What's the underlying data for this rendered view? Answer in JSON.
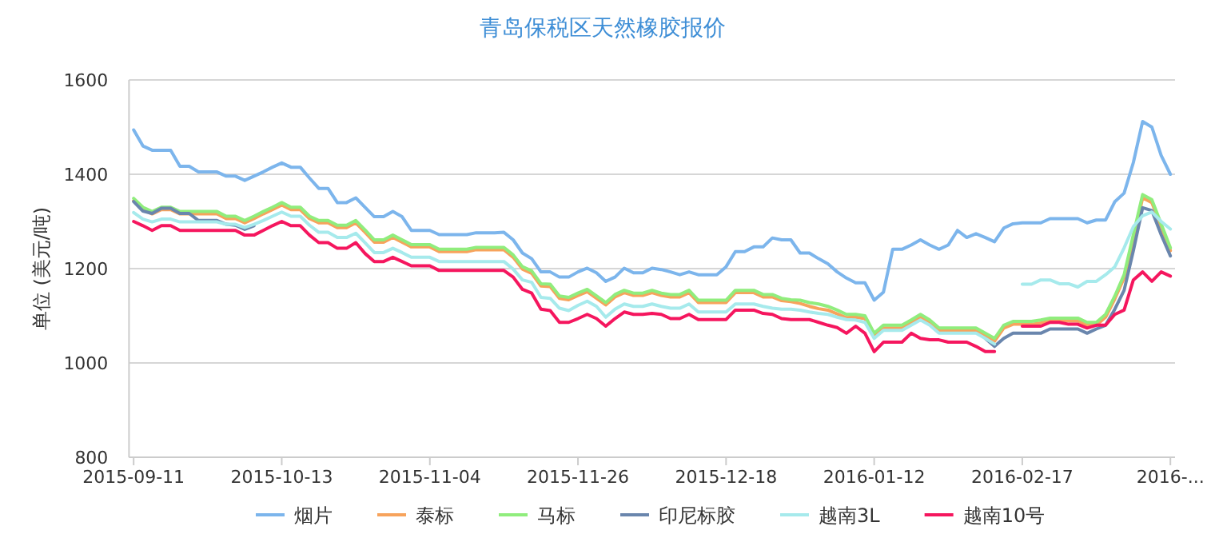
{
  "chart_data": {
    "type": "line",
    "title": "青岛保税区天然橡胶报价",
    "ylabel": "单位 (美元/吨)",
    "categories": [
      "2015-09-11",
      null,
      null,
      null,
      null,
      null,
      null,
      null,
      null,
      null,
      null,
      null,
      null,
      null,
      null,
      null,
      "2015-10-13",
      null,
      null,
      null,
      null,
      null,
      null,
      null,
      null,
      null,
      null,
      null,
      null,
      null,
      null,
      null,
      "2015-11-04",
      null,
      null,
      null,
      null,
      null,
      null,
      null,
      null,
      null,
      null,
      null,
      null,
      null,
      null,
      null,
      "2015-11-26",
      null,
      null,
      null,
      null,
      null,
      null,
      null,
      null,
      null,
      null,
      null,
      null,
      null,
      null,
      null,
      "2015-12-18",
      null,
      null,
      null,
      null,
      null,
      null,
      null,
      null,
      null,
      null,
      null,
      null,
      null,
      null,
      null,
      "2016-01-12",
      null,
      null,
      null,
      null,
      null,
      null,
      null,
      null,
      null,
      null,
      null,
      null,
      null,
      null,
      null,
      "2016-02-17",
      null,
      null,
      null,
      null,
      null,
      null,
      null,
      null,
      null,
      null,
      null,
      null,
      null,
      null,
      null,
      "2016-..."
    ],
    "series": [
      {
        "name": "烟片",
        "color": "#7cb5ec",
        "values": [
          1494,
          1460,
          1451,
          1451,
          1451,
          1417,
          1417,
          1405,
          1405,
          1405,
          1396,
          1396,
          1387,
          1396,
          1405,
          1415,
          1424,
          1415,
          1415,
          1392,
          1370,
          1370,
          1340,
          1340,
          1350,
          1330,
          1310,
          1310,
          1321,
          1310,
          1281,
          1281,
          1281,
          1272,
          1272,
          1272,
          1272,
          1276,
          1276,
          1276,
          1277,
          1261,
          1233,
          1221,
          1193,
          1193,
          1182,
          1182,
          1193,
          1201,
          1191,
          1173,
          1182,
          1201,
          1191,
          1191,
          1201,
          1198,
          1193,
          1187,
          1193,
          1187,
          1187,
          1187,
          1204,
          1236,
          1236,
          1246,
          1246,
          1265,
          1261,
          1261,
          1233,
          1233,
          1221,
          1210,
          1193,
          1180,
          1170,
          1170,
          1133,
          1150,
          1241,
          1241,
          1250,
          1261,
          1250,
          1241,
          1250,
          1281,
          1266,
          1274,
          1266,
          1257,
          1286,
          1295,
          1297,
          1297,
          1297,
          1306,
          1306,
          1306,
          1306,
          1297,
          1303,
          1303,
          1342,
          1360,
          1425,
          1512,
          1500,
          1440,
          1400
        ]
      },
      {
        "name": "泰标",
        "color": "#f7a35c",
        "values": [
          1344,
          1325,
          1316,
          1325,
          1325,
          1316,
          1316,
          1316,
          1316,
          1316,
          1306,
          1306,
          1297,
          1306,
          1316,
          1325,
          1335,
          1325,
          1325,
          1306,
          1297,
          1297,
          1287,
          1287,
          1297,
          1277,
          1256,
          1256,
          1266,
          1256,
          1246,
          1246,
          1246,
          1236,
          1236,
          1236,
          1236,
          1240,
          1240,
          1240,
          1240,
          1224,
          1199,
          1190,
          1163,
          1162,
          1137,
          1134,
          1143,
          1151,
          1137,
          1123,
          1140,
          1149,
          1143,
          1143,
          1149,
          1143,
          1140,
          1140,
          1149,
          1128,
          1128,
          1128,
          1128,
          1149,
          1149,
          1149,
          1140,
          1140,
          1132,
          1130,
          1126,
          1120,
          1115,
          1112,
          1104,
          1096,
          1097,
          1094,
          1057,
          1074,
          1074,
          1074,
          1085,
          1097,
          1085,
          1068,
          1068,
          1068,
          1068,
          1068,
          1057,
          1046,
          1074,
          1082,
          1082,
          1082,
          1085,
          1089,
          1089,
          1089,
          1089,
          1080,
          1080,
          1097,
          1136,
          1180,
          1262,
          1350,
          1340,
          1290,
          1238
        ]
      },
      {
        "name": "马标",
        "color": "#90ed7d",
        "values": [
          1349,
          1330,
          1321,
          1330,
          1330,
          1321,
          1321,
          1321,
          1321,
          1321,
          1311,
          1311,
          1302,
          1311,
          1321,
          1330,
          1340,
          1330,
          1330,
          1311,
          1302,
          1302,
          1292,
          1292,
          1302,
          1282,
          1261,
          1261,
          1271,
          1261,
          1251,
          1251,
          1251,
          1241,
          1241,
          1241,
          1241,
          1245,
          1245,
          1245,
          1245,
          1229,
          1204,
          1195,
          1168,
          1167,
          1142,
          1139,
          1148,
          1156,
          1142,
          1128,
          1145,
          1154,
          1148,
          1148,
          1154,
          1148,
          1145,
          1145,
          1154,
          1133,
          1133,
          1133,
          1133,
          1154,
          1154,
          1154,
          1145,
          1145,
          1137,
          1134,
          1133,
          1128,
          1125,
          1120,
          1112,
          1103,
          1103,
          1100,
          1063,
          1080,
          1080,
          1080,
          1091,
          1103,
          1091,
          1074,
          1074,
          1074,
          1074,
          1074,
          1063,
          1052,
          1080,
          1088,
          1088,
          1088,
          1091,
          1095,
          1095,
          1095,
          1095,
          1086,
          1086,
          1103,
          1142,
          1187,
          1272,
          1357,
          1346,
          1295,
          1244
        ]
      },
      {
        "name": "印尼标胶",
        "color": "#6a86ad",
        "values": [
          1342,
          1322,
          1317,
          1328,
          1328,
          1317,
          1317,
          1302,
          1302,
          1302,
          1294,
          1292,
          1283,
          1291,
          null,
          null,
          null,
          null,
          null,
          null,
          null,
          null,
          null,
          null,
          null,
          null,
          null,
          null,
          null,
          null,
          null,
          null,
          null,
          null,
          null,
          null,
          null,
          null,
          null,
          null,
          null,
          null,
          null,
          null,
          null,
          null,
          null,
          null,
          null,
          null,
          null,
          null,
          null,
          null,
          null,
          null,
          null,
          null,
          null,
          null,
          null,
          null,
          null,
          null,
          null,
          null,
          null,
          null,
          null,
          null,
          null,
          null,
          null,
          null,
          null,
          null,
          null,
          null,
          null,
          null,
          null,
          null,
          null,
          null,
          null,
          null,
          null,
          null,
          null,
          null,
          null,
          null,
          1052,
          1035,
          1052,
          1063,
          1063,
          1063,
          1063,
          1072,
          1072,
          1072,
          1072,
          1063,
          1072,
          1080,
          1114,
          1154,
          1238,
          1329,
          1323,
          1272,
          1227
        ]
      },
      {
        "name": "越南3L",
        "color": "#a6eaec",
        "values": [
          1319,
          1305,
          1299,
          1305,
          1305,
          1299,
          1299,
          1299,
          1299,
          1299,
          1294,
          1294,
          1287,
          1294,
          1302,
          1311,
          1320,
          1311,
          1311,
          1292,
          1277,
          1277,
          1266,
          1266,
          1275,
          1255,
          1234,
          1234,
          1243,
          1234,
          1224,
          1224,
          1224,
          1215,
          1215,
          1215,
          1215,
          1215,
          1215,
          1215,
          1215,
          1199,
          1176,
          1171,
          1139,
          1137,
          1116,
          1111,
          1122,
          1131,
          1120,
          1097,
          1114,
          1125,
          1120,
          1120,
          1125,
          1120,
          1116,
          1116,
          1125,
          1108,
          1108,
          1108,
          1108,
          1125,
          1125,
          1125,
          1120,
          1116,
          1114,
          1114,
          1112,
          1108,
          1105,
          1103,
          1097,
          1092,
          1091,
          1086,
          1052,
          1069,
          1069,
          1069,
          1080,
          1091,
          1080,
          1063,
          1063,
          1063,
          1063,
          1063,
          1052,
          1040,
          null,
          null,
          1167,
          1167,
          1176,
          1176,
          1168,
          1168,
          1161,
          1173,
          1173,
          1187,
          1204,
          1244,
          1289,
          1312,
          1320,
          1300,
          1284
        ]
      },
      {
        "name": "越南10号",
        "color": "#f5165e",
        "values": [
          1300,
          1291,
          1281,
          1291,
          1291,
          1281,
          1281,
          1281,
          1281,
          1281,
          1281,
          1281,
          1271,
          1271,
          1281,
          1291,
          1300,
          1291,
          1291,
          1271,
          1255,
          1255,
          1243,
          1243,
          1255,
          1232,
          1215,
          1215,
          1224,
          1215,
          1206,
          1206,
          1206,
          1196,
          1196,
          1196,
          1196,
          1196,
          1196,
          1196,
          1196,
          1182,
          1156,
          1148,
          1114,
          1111,
          1086,
          1086,
          1094,
          1103,
          1094,
          1078,
          1094,
          1108,
          1103,
          1103,
          1105,
          1103,
          1094,
          1094,
          1103,
          1092,
          1092,
          1092,
          1092,
          1112,
          1112,
          1112,
          1105,
          1103,
          1094,
          1092,
          1092,
          1092,
          1086,
          1080,
          1075,
          1063,
          1078,
          1063,
          1024,
          1044,
          1044,
          1044,
          1063,
          1052,
          1049,
          1049,
          1044,
          1044,
          1044,
          1035,
          1024,
          1024,
          null,
          null,
          1078,
          1078,
          1078,
          1086,
          1086,
          1082,
          1082,
          1074,
          1080,
          1080,
          1103,
          1112,
          1176,
          1193,
          1173,
          1193,
          1184
        ]
      }
    ],
    "ylim": [
      800,
      1600
    ],
    "yticks": [
      800,
      1000,
      1200,
      1400,
      1600
    ],
    "grid": "y",
    "legend": "bottom"
  }
}
